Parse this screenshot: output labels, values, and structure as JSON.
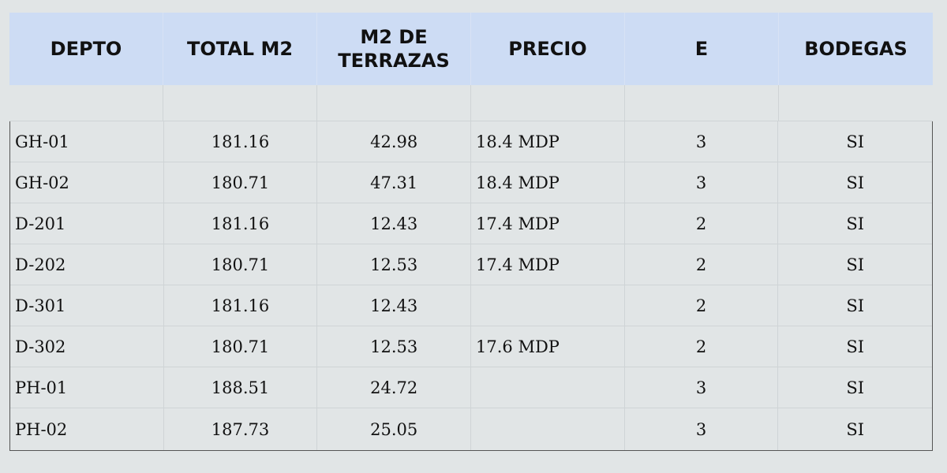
{
  "table": {
    "headers": [
      "DEPTO",
      "TOTAL M2",
      "M2 DE TERRAZAS",
      "PRECIO",
      "E",
      "BODEGAS"
    ],
    "rows": [
      [
        "GH-01",
        "181.16",
        "42.98",
        "18.4 MDP",
        "3",
        "SI"
      ],
      [
        "GH-02",
        "180.71",
        "47.31",
        "18.4 MDP",
        "3",
        "SI"
      ],
      [
        "D-201",
        "181.16",
        "12.43",
        "17.4 MDP",
        "2",
        "SI"
      ],
      [
        "D-202",
        "180.71",
        "12.53",
        "17.4 MDP",
        "2",
        "SI"
      ],
      [
        "D-301",
        "181.16",
        "12.43",
        "",
        "2",
        "SI"
      ],
      [
        "D-302",
        "180.71",
        "12.53",
        "17.6 MDP",
        "2",
        "SI"
      ],
      [
        "PH-01",
        "188.51",
        "24.72",
        "",
        "3",
        "SI"
      ],
      [
        "PH-02",
        "187.73",
        "25.05",
        "",
        "3",
        "SI"
      ]
    ]
  },
  "colors": {
    "header_bg": "#cddcf4",
    "page_bg": "#e1e5e6"
  }
}
